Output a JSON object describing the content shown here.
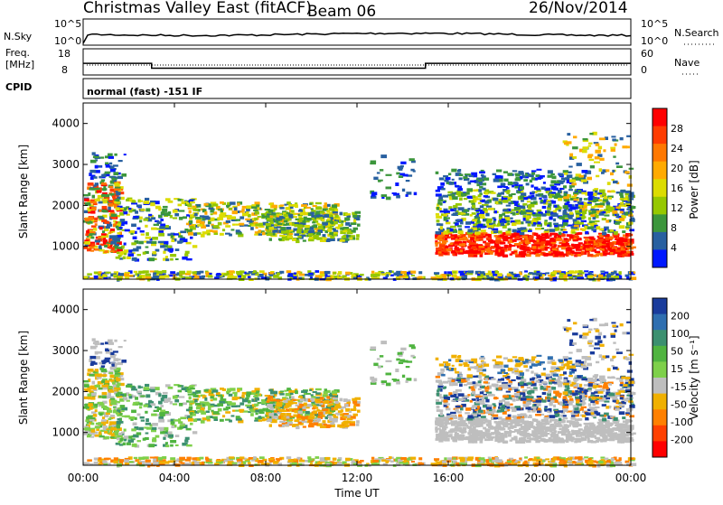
{
  "header": {
    "station": "Christmas Valley East (fitACF)",
    "beam": "Beam 06",
    "date": "26/Nov/2014"
  },
  "noise_panel": {
    "left_label": "N.Sky",
    "right_label": "N.Search",
    "left_ticks": [
      "10^5",
      "10^0"
    ],
    "right_ticks": [
      "10^5",
      "10^0"
    ]
  },
  "freq_panel": {
    "left_label_1": "Freq.",
    "left_label_2": "[MHz]",
    "right_label": "Nave",
    "left_ticks": [
      "18",
      "8"
    ],
    "right_ticks": [
      "60",
      "0"
    ]
  },
  "cpid_panel": {
    "label": "CPID",
    "text": "normal (fast) -151 IF"
  },
  "power_panel": {
    "ylabel": "Slant Range [km]",
    "colorbar_label": "Power [dB]",
    "colorbar_ticks": [
      "28",
      "24",
      "20",
      "16",
      "12",
      "8",
      "4"
    ],
    "colorbar_colors": [
      "#ff0000",
      "#ff3c00",
      "#ff7800",
      "#ffaa00",
      "#dcdc00",
      "#96c800",
      "#3c963c",
      "#2860a0",
      "#0018ff"
    ]
  },
  "velocity_panel": {
    "ylabel": "Slant Range [km]",
    "colorbar_label": "Velocity [m s⁻¹]",
    "colorbar_ticks": [
      "200",
      "100",
      "50",
      "15",
      "-15",
      "-50",
      "-100",
      "-200"
    ],
    "colorbar_colors": [
      "#1a3c9c",
      "#2f6fb0",
      "#3c9070",
      "#50b440",
      "#7ed04a",
      "#bebebe",
      "#f0b000",
      "#ff8000",
      "#ff4000",
      "#ff0000"
    ]
  },
  "chart_data": {
    "type": "heatmap",
    "title": "Christmas Valley East (fitACF)",
    "xlabel": "Time UT",
    "ylabel": "Slant Range [km]",
    "x_ticks": [
      "00:00",
      "04:00",
      "08:00",
      "12:00",
      "16:00",
      "20:00",
      "00:00"
    ],
    "y_ticks": [
      1000,
      2000,
      3000,
      4000
    ],
    "xlim_hours": [
      0,
      24
    ],
    "ylim_km": [
      200,
      4500
    ],
    "frequency_segments_mhz": [
      {
        "start_h": 0,
        "end_h": 3,
        "value": 13.5
      },
      {
        "start_h": 3,
        "end_h": 15,
        "value": 10.5
      },
      {
        "start_h": 15,
        "end_h": 24,
        "value": 13.5
      }
    ],
    "power_db_scale": [
      0,
      30
    ],
    "velocity_scale": [
      -250,
      250
    ]
  }
}
